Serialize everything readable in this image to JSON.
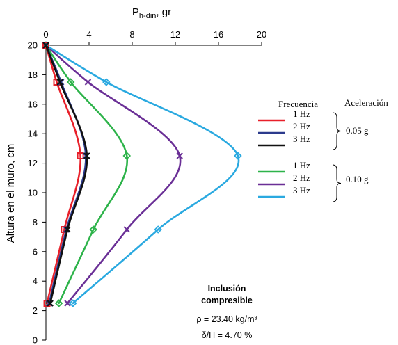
{
  "chart_data": {
    "type": "line",
    "xlabel": "P",
    "xlabel_sub": "h-din",
    "xlabel_unit": ", gr",
    "ylabel": "Altura en el muro, cm",
    "xlim": [
      0,
      20
    ],
    "ylim": [
      0,
      20
    ],
    "xticks": [
      "0",
      "4",
      "8",
      "12",
      "16",
      "20"
    ],
    "yticks": [
      "0",
      "2",
      "4",
      "6",
      "8",
      "10",
      "12",
      "14",
      "16",
      "18",
      "20"
    ],
    "x_axis_position": "top",
    "grid": false,
    "legend": {
      "title": "Frecuencia",
      "accel_title": "Aceleración",
      "group1_accel": "0.05 g",
      "group2_accel": "0.10 g",
      "placement": "right"
    },
    "annotation": {
      "title_line1": "Inclusión",
      "title_line2": "compresible",
      "rho_line": "ρ = 23.40 kg/m³",
      "delta_line": "δ/H = 4.70 %"
    },
    "series": [
      {
        "name": "1 Hz",
        "group": "0.05 g",
        "color": "#e8202a",
        "marker": "square",
        "points": [
          [
            0,
            20
          ],
          [
            1.0,
            17.5
          ],
          [
            3.2,
            12.5
          ],
          [
            1.7,
            7.5
          ],
          [
            0.1,
            2.5
          ]
        ]
      },
      {
        "name": "2 Hz",
        "group": "0.05 g",
        "color": "#2b3a8c",
        "marker": "x",
        "points": [
          [
            0,
            20
          ],
          [
            1.4,
            17.5
          ],
          [
            3.7,
            12.5
          ],
          [
            1.9,
            7.5
          ],
          [
            0.3,
            2.5
          ]
        ]
      },
      {
        "name": "3 Hz",
        "group": "0.05 g",
        "color": "#111111",
        "marker": "x",
        "points": [
          [
            0,
            20
          ],
          [
            1.3,
            17.5
          ],
          [
            3.8,
            12.5
          ],
          [
            2.0,
            7.5
          ],
          [
            0.4,
            2.5
          ]
        ]
      },
      {
        "name": "1 Hz",
        "group": "0.10 g",
        "color": "#2db34a",
        "marker": "diamond",
        "points": [
          [
            0,
            20
          ],
          [
            2.3,
            17.5
          ],
          [
            7.5,
            12.5
          ],
          [
            4.4,
            7.5
          ],
          [
            1.2,
            2.5
          ]
        ]
      },
      {
        "name": "2 Hz",
        "group": "0.10 g",
        "color": "#6a2f96",
        "marker": "x",
        "points": [
          [
            0,
            20
          ],
          [
            3.9,
            17.5
          ],
          [
            12.4,
            12.5
          ],
          [
            7.5,
            7.5
          ],
          [
            2.0,
            2.5
          ]
        ]
      },
      {
        "name": "3 Hz",
        "group": "0.10 g",
        "color": "#2aa9e0",
        "marker": "diamond",
        "points": [
          [
            0,
            20
          ],
          [
            5.6,
            17.5
          ],
          [
            17.8,
            12.5
          ],
          [
            10.4,
            7.5
          ],
          [
            2.5,
            2.5
          ]
        ]
      }
    ]
  }
}
